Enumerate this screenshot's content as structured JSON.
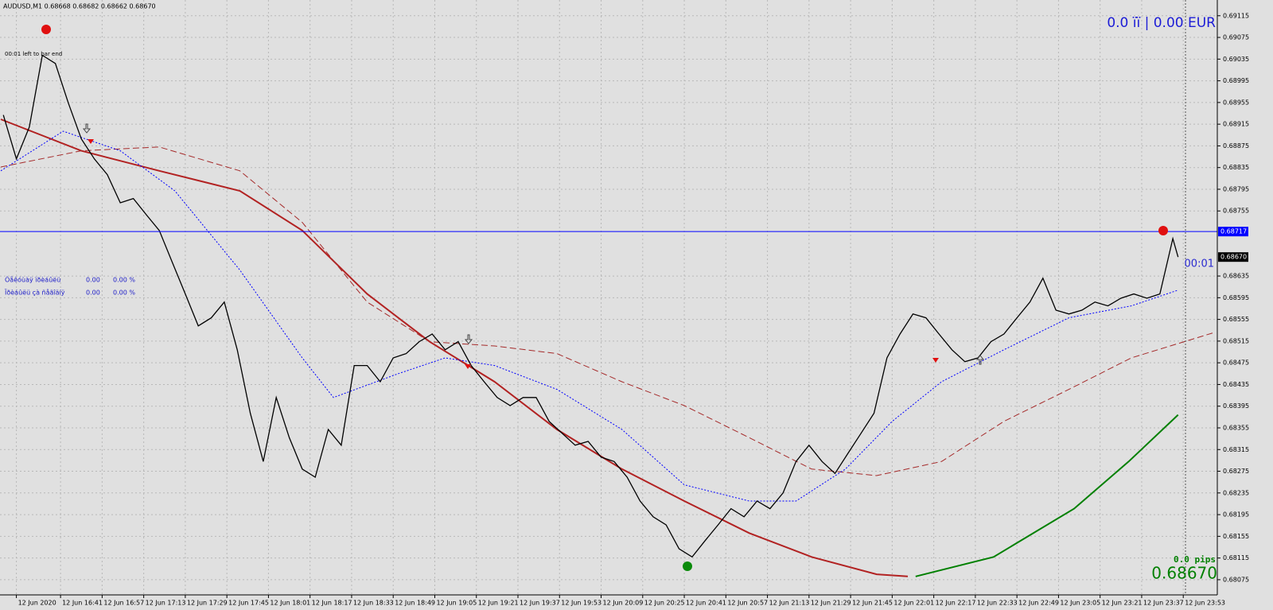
{
  "chart_data": {
    "type": "line",
    "title": "AUDUSD,M1  0.68668 0.68682 0.68662 0.68670",
    "timer_text": "00:01 left to bar end",
    "account_text": "0.0 ïï | 0.00 EUR",
    "countdown": "00:01",
    "pips_text": "0.0 pips",
    "profit_rows": [
      [
        "Òåêóùàÿ ïðèáûëü",
        "0.00",
        "0.00 %"
      ],
      [
        "Ïðèáûëü çà ñåãîäíÿ",
        "0.00",
        "0.00 %"
      ]
    ],
    "color": "#000000",
    "grid": true,
    "xlim": [
      977.7,
      1446.1
    ],
    "ylim": [
      0.68047,
      0.69144
    ],
    "xticks": [
      {
        "value": 984,
        "label": "12 Jun 2020"
      },
      {
        "value": 1001,
        "label": "12 Jun 16:41"
      },
      {
        "value": 1017,
        "label": "12 Jun 16:57"
      },
      {
        "value": 1033,
        "label": "12 Jun 17:13"
      },
      {
        "value": 1049,
        "label": "12 Jun 17:29"
      },
      {
        "value": 1065,
        "label": "12 Jun 17:45"
      },
      {
        "value": 1081,
        "label": "12 Jun 18:01"
      },
      {
        "value": 1097,
        "label": "12 Jun 18:17"
      },
      {
        "value": 1113,
        "label": "12 Jun 18:33"
      },
      {
        "value": 1129,
        "label": "12 Jun 18:49"
      },
      {
        "value": 1145,
        "label": "12 Jun 19:05"
      },
      {
        "value": 1161,
        "label": "12 Jun 19:21"
      },
      {
        "value": 1177,
        "label": "12 Jun 19:37"
      },
      {
        "value": 1193,
        "label": "12 Jun 19:53"
      },
      {
        "value": 1209,
        "label": "12 Jun 20:09"
      },
      {
        "value": 1225,
        "label": "12 Jun 20:25"
      },
      {
        "value": 1241,
        "label": "12 Jun 20:41"
      },
      {
        "value": 1257,
        "label": "12 Jun 20:57"
      },
      {
        "value": 1273,
        "label": "12 Jun 21:13"
      },
      {
        "value": 1289,
        "label": "12 Jun 21:29"
      },
      {
        "value": 1305,
        "label": "12 Jun 21:45"
      },
      {
        "value": 1321,
        "label": "12 Jun 22:01"
      },
      {
        "value": 1337,
        "label": "12 Jun 22:17"
      },
      {
        "value": 1353,
        "label": "12 Jun 22:33"
      },
      {
        "value": 1369,
        "label": "12 Jun 22:49"
      },
      {
        "value": 1385,
        "label": "12 Jun 23:05"
      },
      {
        "value": 1401,
        "label": "12 Jun 23:21"
      },
      {
        "value": 1417,
        "label": "12 Jun 23:37"
      },
      {
        "value": 1433,
        "label": "12 Jun 23:53"
      }
    ],
    "yticks": [
      0.69115,
      0.69075,
      0.69035,
      0.68995,
      0.68955,
      0.68915,
      0.68875,
      0.68835,
      0.68795,
      0.68755,
      0.68635,
      0.68595,
      0.68555,
      0.68515,
      0.68475,
      0.68435,
      0.68395,
      0.68355,
      0.68315,
      0.68275,
      0.68235,
      0.68195,
      0.68155,
      0.68115,
      0.68075
    ],
    "hline": {
      "value": 0.68717,
      "label": "0.68717",
      "color": "#0000ff"
    },
    "last_price": {
      "value": 0.6867,
      "label": "0.68670"
    },
    "x": [
      979,
      984,
      989,
      994,
      999,
      1004,
      1009,
      1014,
      1019,
      1024,
      1029,
      1034,
      1039,
      1044,
      1049,
      1054,
      1059,
      1064,
      1069,
      1074,
      1079,
      1084,
      1089,
      1094,
      1099,
      1104,
      1109,
      1114,
      1119,
      1124,
      1129,
      1134,
      1139,
      1144,
      1149,
      1154,
      1159,
      1164,
      1169,
      1174,
      1179,
      1184,
      1189,
      1194,
      1199,
      1204,
      1209,
      1214,
      1219,
      1224,
      1229,
      1234,
      1239,
      1244,
      1249,
      1254,
      1259,
      1264,
      1269,
      1274,
      1279,
      1284,
      1289,
      1294,
      1299,
      1304,
      1309,
      1314,
      1319,
      1324,
      1329,
      1334,
      1339,
      1344,
      1349,
      1354,
      1359,
      1364,
      1369,
      1374,
      1379,
      1384,
      1389,
      1394,
      1399,
      1404,
      1409,
      1414,
      1419,
      1424,
      1429,
      1431
    ],
    "values": [
      0.68932,
      0.68851,
      0.6891,
      0.69042,
      0.69027,
      0.68954,
      0.68888,
      0.68851,
      0.68822,
      0.6877,
      0.68778,
      0.68748,
      0.68719,
      0.6866,
      0.68602,
      0.68543,
      0.68558,
      0.68587,
      0.68499,
      0.68382,
      0.68293,
      0.68411,
      0.68337,
      0.68279,
      0.68264,
      0.68352,
      0.68323,
      0.6847,
      0.6847,
      0.6844,
      0.68484,
      0.68492,
      0.68514,
      0.68528,
      0.68499,
      0.68514,
      0.6847,
      0.6844,
      0.68411,
      0.68396,
      0.68411,
      0.68411,
      0.68367,
      0.68345,
      0.68323,
      0.6833,
      0.68301,
      0.68293,
      0.68264,
      0.6822,
      0.68191,
      0.68176,
      0.68132,
      0.68117,
      0.68147,
      0.68176,
      0.68206,
      0.68191,
      0.6822,
      0.68206,
      0.68235,
      0.68293,
      0.68323,
      0.68293,
      0.68271,
      0.68308,
      0.68345,
      0.68382,
      0.68484,
      0.68528,
      0.68565,
      0.68558,
      0.68528,
      0.68499,
      0.68477,
      0.68484,
      0.68514,
      0.68528,
      0.68558,
      0.68587,
      0.68631,
      0.68572,
      0.68565,
      0.68572,
      0.68587,
      0.6858,
      0.68594,
      0.68602,
      0.68594,
      0.68602,
      0.68704,
      0.6867
    ],
    "series": [
      {
        "color": "#b22222",
        "dash": false,
        "x": [
          978,
          1009,
          1039,
          1070,
          1094,
          1119,
          1143,
          1168,
          1192,
          1217,
          1241,
          1266,
          1290,
          1315,
          1327
        ],
        "values": [
          0.68924,
          0.68866,
          0.68829,
          0.68792,
          0.68719,
          0.68602,
          0.68514,
          0.6844,
          0.68352,
          0.68279,
          0.6822,
          0.68161,
          0.68117,
          0.68085,
          0.68081
        ]
      },
      {
        "color": "#008000",
        "dash": false,
        "x": [
          1330,
          1360,
          1391,
          1412,
          1431
        ],
        "values": [
          0.68081,
          0.68117,
          0.68206,
          0.68293,
          0.68379
        ]
      },
      {
        "color": "#a52a2a",
        "dash": true,
        "x": [
          978,
          1009,
          1039,
          1070,
          1094,
          1119,
          1143,
          1168,
          1192,
          1217,
          1241,
          1266,
          1290,
          1315,
          1340,
          1364,
          1389,
          1413,
          1445
        ],
        "values": [
          0.68836,
          0.68866,
          0.68873,
          0.68829,
          0.68734,
          0.68587,
          0.68514,
          0.68506,
          0.68492,
          0.6844,
          0.68396,
          0.68337,
          0.68279,
          0.68267,
          0.68293,
          0.68367,
          0.68426,
          0.68484,
          0.68531
        ]
      },
      {
        "color": "#0000ff",
        "dash": true,
        "x": [
          978,
          1002,
          1024,
          1045,
          1070,
          1094,
          1106,
          1131,
          1149,
          1168,
          1192,
          1217,
          1241,
          1266,
          1284,
          1303,
          1321,
          1340,
          1364,
          1389,
          1413,
          1431
        ],
        "values": [
          0.68829,
          0.68902,
          0.68866,
          0.68792,
          0.68646,
          0.68484,
          0.68411,
          0.68455,
          0.68484,
          0.6847,
          0.68426,
          0.68352,
          0.6825,
          0.6822,
          0.6822,
          0.68279,
          0.68367,
          0.6844,
          0.68499,
          0.68558,
          0.6858,
          0.68609
        ]
      }
    ]
  }
}
